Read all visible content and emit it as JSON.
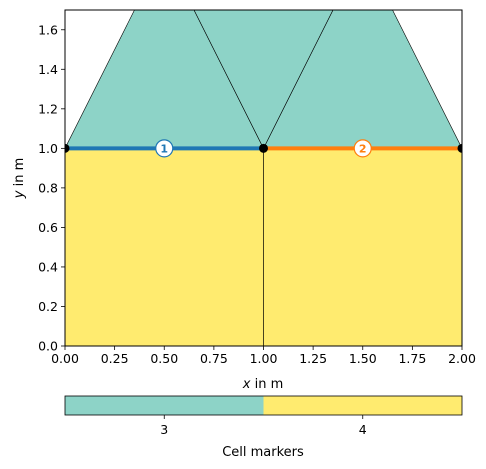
{
  "chart_data": {
    "type": "mesh",
    "xlim": [
      0.0,
      2.0
    ],
    "ylim": [
      0.0,
      1.7
    ],
    "xlabel_var": "x",
    "xlabel_unit": " in m",
    "ylabel_var": "y",
    "ylabel_unit": " in m",
    "x_ticks": [
      "0.00",
      "0.25",
      "0.50",
      "0.75",
      "1.00",
      "1.25",
      "1.50",
      "1.75",
      "2.00"
    ],
    "y_ticks": [
      "0.0",
      "0.2",
      "0.4",
      "0.6",
      "0.8",
      "1.0",
      "1.2",
      "1.4",
      "1.6"
    ],
    "cells": [
      {
        "marker": 3,
        "color": "#8dd3c7",
        "points": [
          [
            0,
            1
          ],
          [
            1,
            1
          ],
          [
            0.5,
            2
          ]
        ]
      },
      {
        "marker": 3,
        "color": "#8dd3c7",
        "points": [
          [
            1,
            1
          ],
          [
            2,
            1
          ],
          [
            1.5,
            2
          ]
        ]
      },
      {
        "marker": 3,
        "color": "#8dd3c7",
        "points": [
          [
            0.5,
            2
          ],
          [
            1,
            1
          ],
          [
            1.5,
            2
          ]
        ]
      },
      {
        "marker": 4,
        "color": "#ffeb6f",
        "points": [
          [
            0,
            0
          ],
          [
            1,
            0
          ],
          [
            1,
            1
          ],
          [
            0,
            1
          ]
        ]
      },
      {
        "marker": 4,
        "color": "#ffeb6f",
        "points": [
          [
            1,
            0
          ],
          [
            2,
            0
          ],
          [
            2,
            1
          ],
          [
            1,
            1
          ]
        ]
      }
    ],
    "boundaries": [
      {
        "marker": "1",
        "color": "#1f77b4",
        "from": [
          0,
          1
        ],
        "to": [
          1,
          1
        ],
        "label_at": [
          0.5,
          1
        ]
      },
      {
        "marker": "2",
        "color": "#ff7f0e",
        "from": [
          1,
          1
        ],
        "to": [
          2,
          1
        ],
        "label_at": [
          1.5,
          1
        ]
      }
    ],
    "nodes": [
      [
        0,
        1
      ],
      [
        1,
        1
      ],
      [
        2,
        1
      ]
    ],
    "colorbar": {
      "label": "Cell markers",
      "entries": [
        {
          "value": "3",
          "color": "#8dd3c7"
        },
        {
          "value": "4",
          "color": "#ffeb6f"
        }
      ]
    }
  }
}
